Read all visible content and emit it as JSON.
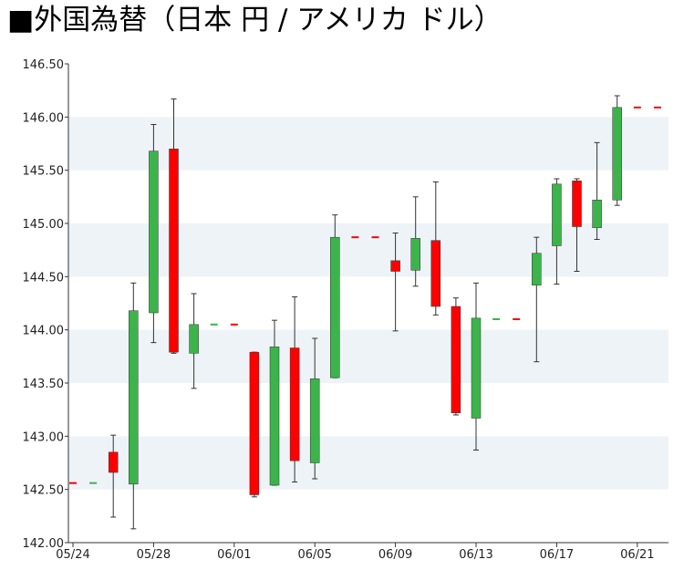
{
  "title": "■外国為替（日本 円 / アメリカ ドル）",
  "chart_data": {
    "type": "candlestick",
    "title": "■外国為替（日本 円 / アメリカ ドル）",
    "ylim": [
      142.0,
      146.5
    ],
    "y_ticks": [
      "142.00",
      "142.50",
      "143.00",
      "143.50",
      "144.00",
      "144.50",
      "145.00",
      "145.50",
      "146.00",
      "146.50"
    ],
    "x_ticks": [
      "05/24",
      "05/28",
      "06/01",
      "06/05",
      "06/09",
      "06/13",
      "06/17",
      "06/21"
    ],
    "grid": "horizontal bands",
    "colors": {
      "up": "#3cb44b",
      "down": "#ff0000",
      "band": "#eef3f8",
      "wick": "#333333"
    },
    "candles": [
      {
        "date": "05/24",
        "open": 142.56,
        "high": 142.56,
        "low": 142.56,
        "close": 142.56,
        "dir": "down"
      },
      {
        "date": "05/25",
        "open": 142.56,
        "high": 142.56,
        "low": 142.56,
        "close": 142.56,
        "dir": "up"
      },
      {
        "date": "05/26",
        "open": 142.85,
        "high": 143.01,
        "low": 142.24,
        "close": 142.66,
        "dir": "down"
      },
      {
        "date": "05/27",
        "open": 142.55,
        "high": 144.44,
        "low": 142.13,
        "close": 144.18,
        "dir": "up"
      },
      {
        "date": "05/28",
        "open": 144.16,
        "high": 145.93,
        "low": 143.88,
        "close": 145.68,
        "dir": "up"
      },
      {
        "date": "05/29",
        "open": 145.7,
        "high": 146.17,
        "low": 143.78,
        "close": 143.79,
        "dir": "down"
      },
      {
        "date": "05/30",
        "open": 143.78,
        "high": 144.34,
        "low": 143.45,
        "close": 144.05,
        "dir": "up"
      },
      {
        "date": "05/31",
        "open": 144.05,
        "high": 144.05,
        "low": 144.05,
        "close": 144.05,
        "dir": "up"
      },
      {
        "date": "06/01",
        "open": 144.05,
        "high": 144.05,
        "low": 144.05,
        "close": 144.05,
        "dir": "down"
      },
      {
        "date": "06/02",
        "open": 143.79,
        "high": 143.79,
        "low": 142.43,
        "close": 142.45,
        "dir": "down"
      },
      {
        "date": "06/03",
        "open": 142.54,
        "high": 144.09,
        "low": 142.54,
        "close": 143.84,
        "dir": "up"
      },
      {
        "date": "06/04",
        "open": 143.83,
        "high": 144.31,
        "low": 142.57,
        "close": 142.77,
        "dir": "down"
      },
      {
        "date": "06/05",
        "open": 142.75,
        "high": 143.92,
        "low": 142.6,
        "close": 143.54,
        "dir": "up"
      },
      {
        "date": "06/06",
        "open": 143.55,
        "high": 145.08,
        "low": 143.55,
        "close": 144.87,
        "dir": "up"
      },
      {
        "date": "06/07",
        "open": 144.87,
        "high": 144.87,
        "low": 144.87,
        "close": 144.87,
        "dir": "down"
      },
      {
        "date": "06/08",
        "open": 144.87,
        "high": 144.87,
        "low": 144.87,
        "close": 144.87,
        "dir": "down"
      },
      {
        "date": "06/09",
        "open": 144.65,
        "high": 144.91,
        "low": 143.99,
        "close": 144.55,
        "dir": "down"
      },
      {
        "date": "06/10",
        "open": 144.56,
        "high": 145.25,
        "low": 144.41,
        "close": 144.86,
        "dir": "up"
      },
      {
        "date": "06/11",
        "open": 144.84,
        "high": 145.39,
        "low": 144.14,
        "close": 144.22,
        "dir": "down"
      },
      {
        "date": "06/12",
        "open": 144.22,
        "high": 144.3,
        "low": 143.2,
        "close": 143.22,
        "dir": "down"
      },
      {
        "date": "06/13",
        "open": 143.17,
        "high": 144.44,
        "low": 142.87,
        "close": 144.11,
        "dir": "up"
      },
      {
        "date": "06/14",
        "open": 144.1,
        "high": 144.1,
        "low": 144.1,
        "close": 144.1,
        "dir": "up"
      },
      {
        "date": "06/15",
        "open": 144.1,
        "high": 144.1,
        "low": 144.1,
        "close": 144.1,
        "dir": "down"
      },
      {
        "date": "06/16",
        "open": 144.42,
        "high": 144.87,
        "low": 143.7,
        "close": 144.72,
        "dir": "up"
      },
      {
        "date": "06/17",
        "open": 144.79,
        "high": 145.42,
        "low": 144.43,
        "close": 145.37,
        "dir": "up"
      },
      {
        "date": "06/18",
        "open": 145.4,
        "high": 145.42,
        "low": 144.55,
        "close": 144.97,
        "dir": "down"
      },
      {
        "date": "06/19",
        "open": 144.96,
        "high": 145.76,
        "low": 144.85,
        "close": 145.22,
        "dir": "up"
      },
      {
        "date": "06/20",
        "open": 145.22,
        "high": 146.2,
        "low": 145.17,
        "close": 146.09,
        "dir": "up"
      },
      {
        "date": "06/21",
        "open": 146.09,
        "high": 146.09,
        "low": 146.09,
        "close": 146.09,
        "dir": "down"
      },
      {
        "date": "06/22",
        "open": 146.09,
        "high": 146.09,
        "low": 146.09,
        "close": 146.09,
        "dir": "down"
      }
    ]
  }
}
